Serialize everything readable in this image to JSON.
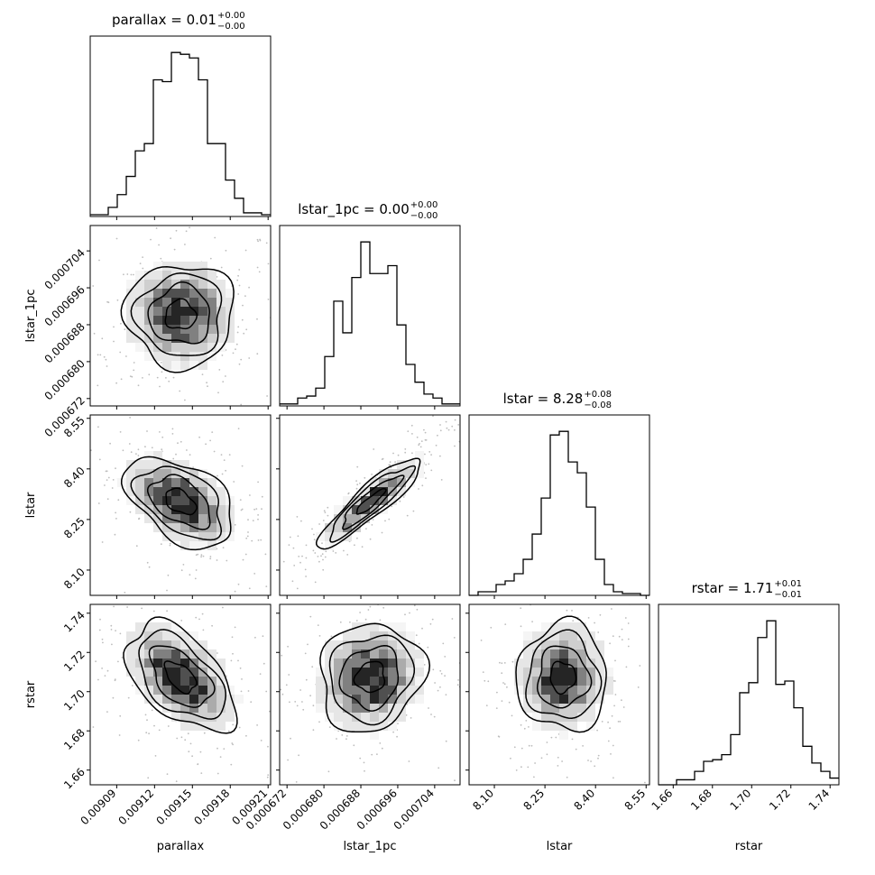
{
  "chart_data": {
    "type": "corner",
    "parameters": [
      "parallax",
      "lstar_1pc",
      "lstar",
      "rstar"
    ],
    "axis_labels": [
      "parallax",
      "lstar_1pc",
      "lstar",
      "rstar"
    ],
    "titles": [
      {
        "name": "parallax",
        "value": "0.01",
        "plus": "+0.00",
        "minus": "−0.00"
      },
      {
        "name": "lstar_1pc",
        "value": "0.00",
        "plus": "+0.00",
        "minus": "−0.00"
      },
      {
        "name": "lstar",
        "value": "8.28",
        "plus": "+0.08",
        "minus": "−0.08"
      },
      {
        "name": "rstar",
        "value": "1.71",
        "plus": "+0.01",
        "minus": "−0.01"
      }
    ],
    "ranges": [
      [
        0.009069,
        0.009212
      ],
      [
        0.0006704,
        0.0007095
      ],
      [
        8.025,
        8.56
      ],
      [
        1.6525,
        1.7445
      ]
    ],
    "ticks": [
      [
        0.00909,
        0.00912,
        0.00915,
        0.00918,
        0.00921
      ],
      [
        0.000672,
        0.00068,
        0.000688,
        0.000696,
        0.000704
      ],
      [
        8.1,
        8.25,
        8.4,
        8.55
      ],
      [
        1.66,
        1.68,
        1.7,
        1.72,
        1.74
      ]
    ],
    "tick_labels": [
      [
        "0.00909",
        "0.00912",
        "0.00915",
        "0.00918",
        "0.00921"
      ],
      [
        "0.000672",
        "0.000680",
        "0.000688",
        "0.000696",
        "0.000704"
      ],
      [
        "8.10",
        "8.25",
        "8.40",
        "8.55"
      ],
      [
        "1.66",
        "1.68",
        "1.70",
        "1.72",
        "1.74"
      ]
    ],
    "histograms": [
      {
        "param": "parallax",
        "bin_edges": [
          0.009069,
          0.009212
        ],
        "counts": [
          1,
          1,
          5,
          12,
          22,
          36,
          40,
          75,
          74,
          90,
          89,
          87,
          75,
          40,
          40,
          20,
          10,
          2,
          2,
          1
        ]
      },
      {
        "param": "lstar_1pc",
        "bin_edges": [
          0.0006704,
          0.0007095
        ],
        "counts": [
          1,
          1,
          4,
          5,
          9,
          25,
          53,
          37,
          65,
          83,
          67,
          67,
          71,
          41,
          21,
          12,
          6,
          4,
          1,
          1
        ]
      },
      {
        "param": "lstar",
        "bin_edges": [
          8.025,
          8.56
        ],
        "counts": [
          0,
          2,
          2,
          6,
          8,
          12,
          20,
          34,
          54,
          89,
          91,
          74,
          68,
          49,
          20,
          6,
          2,
          1,
          1,
          0
        ]
      },
      {
        "param": "rstar",
        "bin_edges": [
          1.6525,
          1.7445
        ],
        "counts": [
          0,
          0,
          3,
          3,
          8,
          14,
          15,
          18,
          30,
          55,
          61,
          88,
          98,
          60,
          62,
          46,
          23,
          13,
          8,
          4
        ]
      }
    ],
    "pairs": [
      {
        "x": "parallax",
        "y": "lstar_1pc",
        "correlation": 0.0
      },
      {
        "x": "parallax",
        "y": "lstar",
        "correlation": -0.45
      },
      {
        "x": "lstar_1pc",
        "y": "lstar",
        "correlation": 0.9
      },
      {
        "x": "parallax",
        "y": "rstar",
        "correlation": -0.5
      },
      {
        "x": "lstar_1pc",
        "y": "rstar",
        "correlation": 0.1
      },
      {
        "x": "lstar",
        "y": "rstar",
        "correlation": 0.0
      }
    ],
    "grid": false,
    "legend": "none",
    "colors": {
      "line": "#000000",
      "scatter": "#bdbdbd",
      "density": "#000000",
      "background": "#ffffff"
    }
  }
}
